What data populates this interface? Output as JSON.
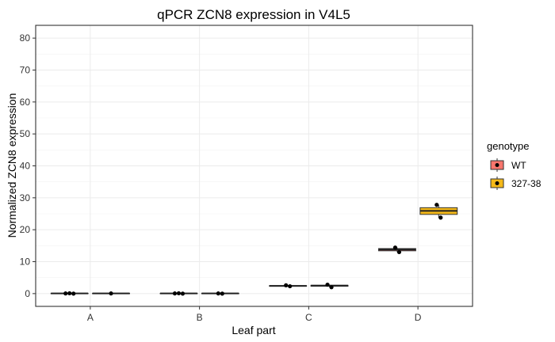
{
  "chart_data": {
    "type": "boxplot",
    "title": "qPCR ZCN8 expression in V4L5",
    "xlabel": "Leaf part",
    "ylabel": "Normalized ZCN8 expression",
    "ylim": [
      -4,
      84
    ],
    "yticks": [
      0,
      10,
      20,
      30,
      40,
      50,
      60,
      70,
      80
    ],
    "categories": [
      "A",
      "B",
      "C",
      "D"
    ],
    "grid": true,
    "legend": {
      "title": "genotype",
      "placement": "right",
      "entries": [
        "WT",
        "327-38"
      ]
    },
    "series": [
      {
        "name": "WT",
        "color": "#F8766D",
        "boxes": [
          {
            "category": "A",
            "min": 0.0,
            "q1": 0.0,
            "median": 0.05,
            "q3": 0.1,
            "max": 0.1,
            "points": [
              0.05,
              0.1,
              0.0
            ]
          },
          {
            "category": "B",
            "min": 0.0,
            "q1": 0.0,
            "median": 0.05,
            "q3": 0.1,
            "max": 0.1,
            "points": [
              0.05,
              0.1,
              0.0
            ]
          },
          {
            "category": "C",
            "min": 2.2,
            "q1": 2.3,
            "median": 2.4,
            "q3": 2.5,
            "max": 2.6,
            "points": [
              2.6,
              2.3
            ]
          },
          {
            "category": "D",
            "min": 13.0,
            "q1": 13.4,
            "median": 13.8,
            "q3": 14.1,
            "max": 14.4,
            "points": [
              14.4,
              13.0
            ]
          }
        ]
      },
      {
        "name": "327-38",
        "color": "#F5B919",
        "boxes": [
          {
            "category": "A",
            "min": 0.0,
            "q1": 0.0,
            "median": 0.05,
            "q3": 0.1,
            "max": 0.1,
            "points": [
              0.05
            ]
          },
          {
            "category": "B",
            "min": 0.0,
            "q1": 0.0,
            "median": 0.05,
            "q3": 0.1,
            "max": 0.1,
            "points": [
              0.05,
              0.0
            ]
          },
          {
            "category": "C",
            "min": 2.0,
            "q1": 2.3,
            "median": 2.5,
            "q3": 2.6,
            "max": 2.8,
            "points": [
              2.8,
              2.0
            ]
          },
          {
            "category": "D",
            "min": 23.8,
            "q1": 24.8,
            "median": 25.9,
            "q3": 26.9,
            "max": 27.8,
            "points": [
              27.8,
              23.8
            ]
          }
        ]
      }
    ]
  }
}
